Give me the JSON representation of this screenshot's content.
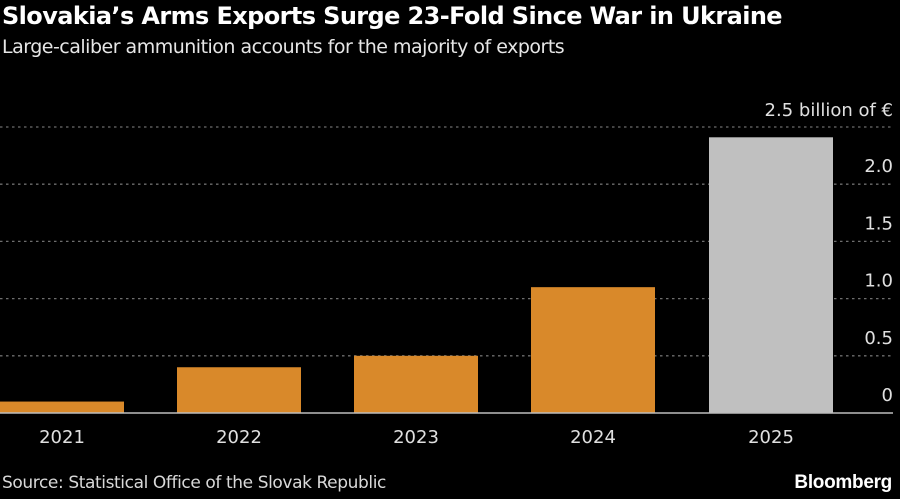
{
  "header": {
    "title": "Slovakia’s Arms Exports Surge 23-Fold Since War in Ukraine",
    "subtitle": "Large-caliber ammunition accounts for the majority of exports"
  },
  "footer": {
    "source": "Source: Statistical Office of the Slovak Republic",
    "brand": "Bloomberg"
  },
  "chart_data": {
    "type": "bar",
    "title": "Slovakia’s Arms Exports Surge 23-Fold Since War in Ukraine",
    "subtitle": "Large-caliber ammunition accounts for the majority of exports",
    "xlabel": "",
    "ylabel": "billion of €",
    "unit_label": "2.5 billion of €",
    "categories": [
      "2021",
      "2022",
      "2023",
      "2024",
      "2025"
    ],
    "values": [
      0.1,
      0.4,
      0.5,
      1.1,
      2.41
    ],
    "bar_colors": [
      "#d9892a",
      "#d9892a",
      "#d9892a",
      "#d9892a",
      "#c0c0c0"
    ],
    "ylim": [
      0,
      2.5
    ],
    "yticks": [
      0,
      0.5,
      1.0,
      1.5,
      2.0,
      2.5
    ],
    "ytick_labels": [
      "0",
      "0.5",
      "1.0",
      "1.5",
      "2.0",
      "2.5 billion of €"
    ],
    "grid": true,
    "y_axis_position": "right",
    "legend": "none",
    "source": "Source: Statistical Office of the Slovak Republic"
  }
}
